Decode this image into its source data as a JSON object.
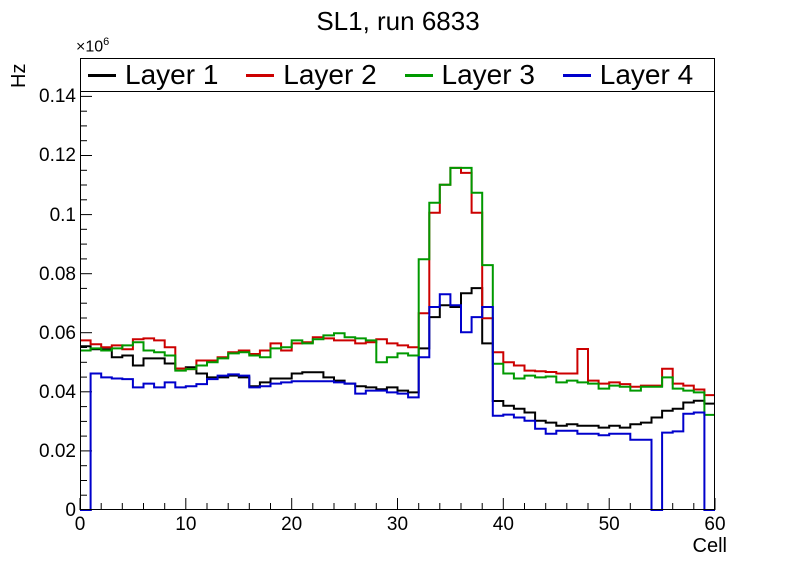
{
  "chart_data": {
    "type": "line",
    "style": "step-histogram",
    "title": "SL1, run 6833",
    "xlabel": "Cell",
    "ylabel": "Hz",
    "y_multiplier_base": "×10",
    "y_multiplier_exp": "6",
    "xlim": [
      0,
      60
    ],
    "ylim": [
      0,
      0.153
    ],
    "bins": 60,
    "grid": false,
    "legend_position": "top",
    "x_ticks": {
      "values": [
        0,
        10,
        20,
        30,
        40,
        50,
        60
      ],
      "labels": [
        "0",
        "10",
        "20",
        "30",
        "40",
        "50",
        "60"
      ],
      "minor_step": 2
    },
    "y_ticks": {
      "values": [
        0,
        0.02,
        0.04,
        0.06,
        0.08,
        0.1,
        0.12,
        0.14
      ],
      "labels": [
        "0",
        "0.02",
        "0.04",
        "0.06",
        "0.08",
        "0.1",
        "0.12",
        "0.14"
      ],
      "minor_step": 0.005
    },
    "series": [
      {
        "name": "Layer 1",
        "color": "#000000",
        "values": [
          0.0554,
          0.0544,
          0.0544,
          0.0517,
          0.0523,
          0.0489,
          0.0513,
          0.0513,
          0.0496,
          0.0479,
          0.0483,
          0.0462,
          0.0449,
          0.0449,
          0.0455,
          0.0449,
          0.0419,
          0.0432,
          0.0445,
          0.0445,
          0.0462,
          0.0466,
          0.0466,
          0.0449,
          0.0438,
          0.0428,
          0.0419,
          0.0415,
          0.0409,
          0.0415,
          0.0404,
          0.0398,
          0.0547,
          0.0653,
          0.0693,
          0.0687,
          0.0734,
          0.0751,
          0.0564,
          0.0369,
          0.0353,
          0.0343,
          0.033,
          0.0302,
          0.0296,
          0.0285,
          0.029,
          0.0285,
          0.0285,
          0.0279,
          0.0285,
          0.0279,
          0.029,
          0.0296,
          0.0313,
          0.0336,
          0.0343,
          0.0364,
          0.037,
          0.036
        ]
      },
      {
        "name": "Layer 2",
        "color": "#cc0000",
        "values": [
          0.0574,
          0.0561,
          0.0551,
          0.0557,
          0.0544,
          0.0578,
          0.0581,
          0.0574,
          0.0551,
          0.0479,
          0.0477,
          0.0506,
          0.0506,
          0.0517,
          0.0534,
          0.054,
          0.0528,
          0.054,
          0.0564,
          0.054,
          0.0564,
          0.0568,
          0.0585,
          0.0581,
          0.0574,
          0.0574,
          0.0564,
          0.0568,
          0.0578,
          0.0564,
          0.0557,
          0.0551,
          0.0666,
          0.1006,
          0.1101,
          0.1158,
          0.1141,
          0.1006,
          0.0649,
          0.0534,
          0.05,
          0.0489,
          0.0472,
          0.047,
          0.0467,
          0.0462,
          0.0462,
          0.0545,
          0.0438,
          0.0428,
          0.0432,
          0.0426,
          0.0417,
          0.0421,
          0.0421,
          0.0478,
          0.0428,
          0.0421,
          0.0408,
          0.0389
        ]
      },
      {
        "name": "Layer 3",
        "color": "#009900",
        "values": [
          0.054,
          0.0547,
          0.054,
          0.0547,
          0.0557,
          0.0568,
          0.054,
          0.0534,
          0.0523,
          0.0472,
          0.0477,
          0.0489,
          0.05,
          0.0513,
          0.053,
          0.0534,
          0.0523,
          0.0517,
          0.0547,
          0.0551,
          0.0574,
          0.0564,
          0.0578,
          0.0591,
          0.0598,
          0.0585,
          0.0581,
          0.0574,
          0.05,
          0.0517,
          0.053,
          0.0523,
          0.0849,
          0.104,
          0.1101,
          0.1158,
          0.1158,
          0.1074,
          0.0829,
          0.0495,
          0.0462,
          0.0445,
          0.0455,
          0.0449,
          0.0452,
          0.0432,
          0.0438,
          0.0432,
          0.0428,
          0.0411,
          0.0421,
          0.0417,
          0.0404,
          0.0417,
          0.0417,
          0.0449,
          0.0411,
          0.0404,
          0.0398,
          0.0322
        ]
      },
      {
        "name": "Layer 4",
        "color": "#0000cc",
        "values": [
          0.0,
          0.0462,
          0.0449,
          0.0445,
          0.0443,
          0.0415,
          0.0428,
          0.0415,
          0.0432,
          0.0415,
          0.0419,
          0.0426,
          0.0443,
          0.0455,
          0.0459,
          0.0455,
          0.0415,
          0.0419,
          0.0428,
          0.0432,
          0.0436,
          0.0436,
          0.0436,
          0.0436,
          0.0432,
          0.0428,
          0.0394,
          0.0404,
          0.0404,
          0.0398,
          0.0394,
          0.0381,
          0.0517,
          0.0687,
          0.073,
          0.0693,
          0.0602,
          0.0653,
          0.0687,
          0.0319,
          0.0323,
          0.0313,
          0.0302,
          0.0275,
          0.0258,
          0.0268,
          0.0268,
          0.0258,
          0.0258,
          0.0253,
          0.0258,
          0.0258,
          0.0238,
          0.0238,
          0.0,
          0.0262,
          0.0266,
          0.0326,
          0.033,
          0.0
        ]
      }
    ]
  }
}
